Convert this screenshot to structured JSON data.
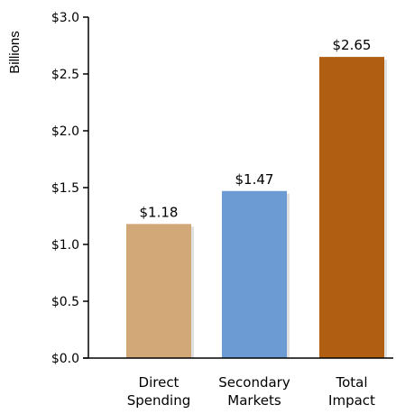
{
  "chart_data": {
    "type": "bar",
    "ylabel": "Billions",
    "categories": [
      [
        "Direct",
        "Spending"
      ],
      [
        "Secondary",
        "Markets"
      ],
      [
        "Total",
        "Impact"
      ]
    ],
    "values": [
      1.18,
      1.47,
      2.65
    ],
    "value_labels": [
      "$1.18",
      "$1.47",
      "$2.65"
    ],
    "colors": [
      "#D2A878",
      "#6B9BD2",
      "#B05E12"
    ],
    "ylim": [
      0,
      3.0
    ],
    "yticks": [
      0,
      0.5,
      1.0,
      1.5,
      2.0,
      2.5,
      3.0
    ],
    "ytick_labels": [
      "$0.0",
      "$0.5",
      "$1.0",
      "$1.5",
      "$2.0",
      "$2.5",
      "$3.0"
    ],
    "grid": false,
    "legend": "none"
  }
}
